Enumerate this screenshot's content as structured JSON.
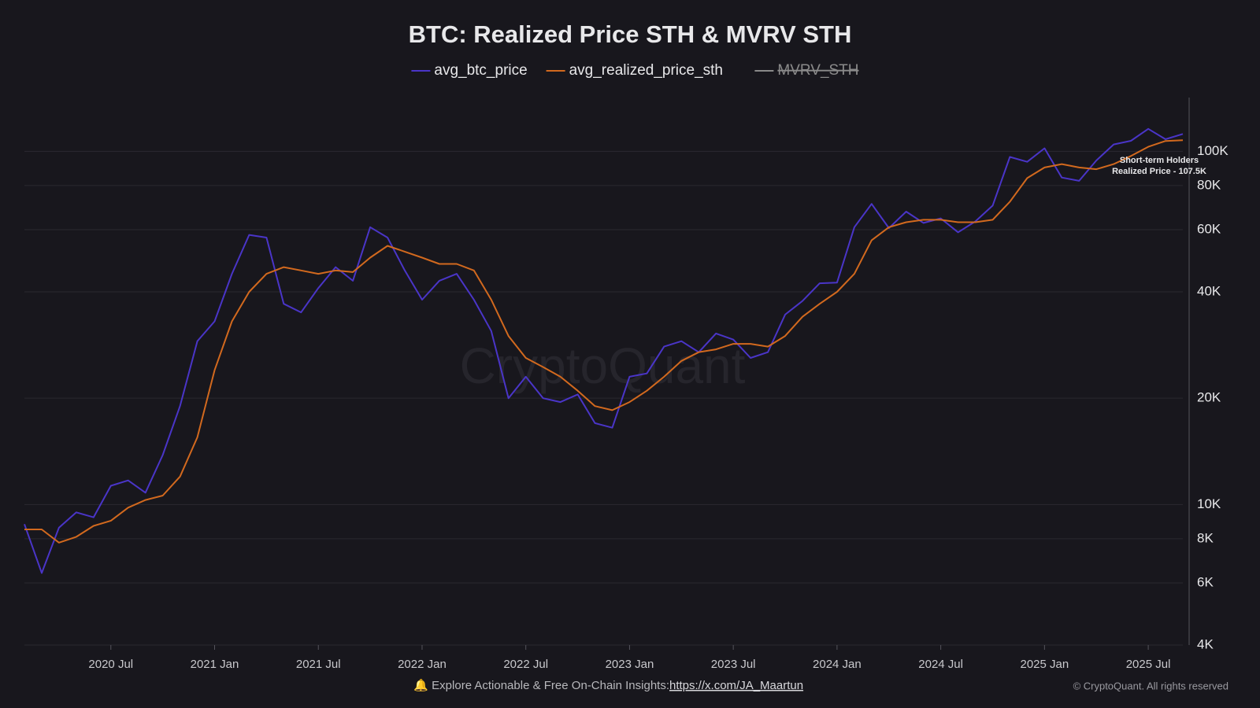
{
  "chart_data": {
    "type": "line",
    "title": "BTC: Realized Price STH & MVRV STH",
    "log_scale": true,
    "grid": true,
    "legend": "top",
    "x": [
      "2020-02",
      "2020-03",
      "2020-04",
      "2020-05",
      "2020-06",
      "2020-07",
      "2020-08",
      "2020-09",
      "2020-10",
      "2020-11",
      "2020-12",
      "2021-01",
      "2021-02",
      "2021-03",
      "2021-04",
      "2021-05",
      "2021-06",
      "2021-07",
      "2021-08",
      "2021-09",
      "2021-10",
      "2021-11",
      "2021-12",
      "2022-01",
      "2022-02",
      "2022-03",
      "2022-04",
      "2022-05",
      "2022-06",
      "2022-07",
      "2022-08",
      "2022-09",
      "2022-10",
      "2022-11",
      "2022-12",
      "2023-01",
      "2023-02",
      "2023-03",
      "2023-04",
      "2023-05",
      "2023-06",
      "2023-07",
      "2023-08",
      "2023-09",
      "2023-10",
      "2023-11",
      "2023-12",
      "2024-01",
      "2024-02",
      "2024-03",
      "2024-04",
      "2024-05",
      "2024-06",
      "2024-07",
      "2024-08",
      "2024-09",
      "2024-10",
      "2024-11",
      "2024-12",
      "2025-01",
      "2025-02",
      "2025-03",
      "2025-04",
      "2025-05",
      "2025-06",
      "2025-07",
      "2025-08",
      "2025-09"
    ],
    "series": [
      {
        "name": "avg_btc_price",
        "color": "#4a35c8",
        "values": [
          8800,
          6400,
          8600,
          9500,
          9200,
          11300,
          11700,
          10800,
          13800,
          19000,
          29000,
          33000,
          45000,
          58000,
          57000,
          37000,
          35000,
          41000,
          47000,
          43000,
          61000,
          57000,
          46000,
          38000,
          43000,
          45000,
          38000,
          31000,
          20000,
          23000,
          20000,
          19500,
          20500,
          17000,
          16500,
          23000,
          23500,
          28000,
          29000,
          27000,
          30500,
          29300,
          26000,
          27000,
          34500,
          37700,
          42300,
          42500,
          61000,
          71000,
          60600,
          67500,
          62700,
          64600,
          59000,
          63300,
          70200,
          96400,
          93400,
          102000,
          84300,
          82500,
          94200,
          104600,
          107100,
          115800,
          108200,
          112000
        ]
      },
      {
        "name": "avg_realized_price_sth",
        "color": "#d2691e",
        "values": [
          8500,
          8500,
          7800,
          8100,
          8700,
          9000,
          9800,
          10300,
          10600,
          12000,
          15500,
          24000,
          33000,
          40000,
          45000,
          47000,
          46000,
          45000,
          46000,
          45500,
          50000,
          54000,
          52000,
          50000,
          48000,
          48000,
          46000,
          38000,
          30000,
          26000,
          24500,
          23000,
          21000,
          19000,
          18500,
          19500,
          21000,
          23000,
          25500,
          27000,
          27500,
          28500,
          28500,
          28000,
          30000,
          34000,
          37000,
          40000,
          45000,
          56000,
          61000,
          63000,
          64000,
          64000,
          63000,
          63000,
          64000,
          72000,
          84000,
          90000,
          92000,
          90000,
          89000,
          92000,
          97000,
          103000,
          107000,
          107500
        ]
      }
    ],
    "hidden_series": [
      {
        "name": "MVRV_STH",
        "color": "#8a8a8a"
      }
    ],
    "xlim": [
      "2020-02",
      "2025-09"
    ],
    "xticks": [
      {
        "value": "2020-07",
        "label": "2020 Jul"
      },
      {
        "value": "2021-01",
        "label": "2021 Jan"
      },
      {
        "value": "2021-07",
        "label": "2021 Jul"
      },
      {
        "value": "2022-01",
        "label": "2022 Jan"
      },
      {
        "value": "2022-07",
        "label": "2022 Jul"
      },
      {
        "value": "2023-01",
        "label": "2023 Jan"
      },
      {
        "value": "2023-07",
        "label": "2023 Jul"
      },
      {
        "value": "2024-01",
        "label": "2024 Jan"
      },
      {
        "value": "2024-07",
        "label": "2024 Jul"
      },
      {
        "value": "2025-01",
        "label": "2025 Jan"
      },
      {
        "value": "2025-07",
        "label": "2025 Jul"
      }
    ],
    "ylim": [
      4000,
      142000
    ],
    "yticks": [
      {
        "value": 4000,
        "label": "4K"
      },
      {
        "value": 6000,
        "label": "6K"
      },
      {
        "value": 8000,
        "label": "8K"
      },
      {
        "value": 10000,
        "label": "10K"
      },
      {
        "value": 20000,
        "label": "20K"
      },
      {
        "value": 40000,
        "label": "40K"
      },
      {
        "value": 60000,
        "label": "60K"
      },
      {
        "value": 80000,
        "label": "80K"
      },
      {
        "value": 100000,
        "label": "100K"
      }
    ],
    "annotation": [
      "Short-term Holders",
      "Realized Price - 107.5K"
    ],
    "watermark": "CryptoQuant",
    "footer": {
      "text": "🔔 Explore Actionable & Free On-Chain Insights:",
      "link": "https://x.com/JA_Maartun",
      "copyright": "© CryptoQuant. All rights reserved"
    }
  }
}
